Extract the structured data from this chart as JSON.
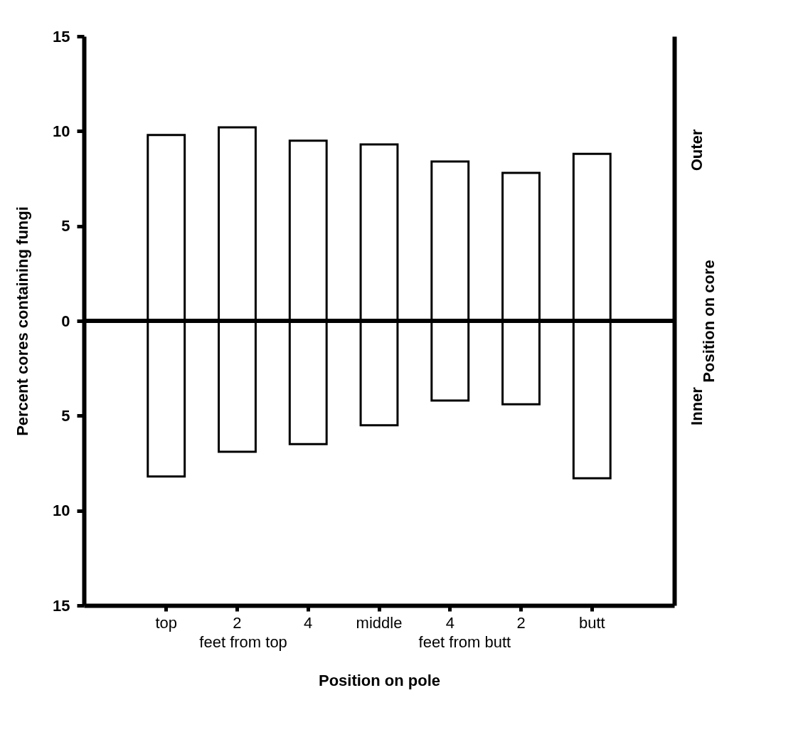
{
  "chart_data": {
    "type": "bar",
    "xlabel": "Position on pole",
    "ylabel": "Percent cores containing fungi",
    "y2label": "Position on core",
    "categories": [
      "top",
      "2",
      "4",
      "middle",
      "4",
      "2",
      "butt"
    ],
    "series": [
      {
        "color": "#ffffff",
        "values": [
          9.8,
          10.2,
          9.5,
          9.3,
          8.4,
          7.8,
          8.8
        ]
      },
      {
        "color": "#ffffff",
        "values": [
          -8.2,
          -6.9,
          -6.5,
          -5.5,
          -4.2,
          -4.4,
          -8.3
        ]
      }
    ],
    "stacked": true,
    "ylim": [
      -15,
      15
    ],
    "yticks": [
      {
        "value": -15,
        "label": "15"
      },
      {
        "value": -10,
        "label": "10"
      },
      {
        "value": -5,
        "label": "5"
      },
      0,
      5,
      10,
      15
    ],
    "ref_lines": [
      {
        "axis": "y",
        "value": 0
      }
    ],
    "annotations": [
      "feet from top",
      "feet from butt",
      "Outer",
      "Inner"
    ],
    "grid": false,
    "legend": false
  }
}
